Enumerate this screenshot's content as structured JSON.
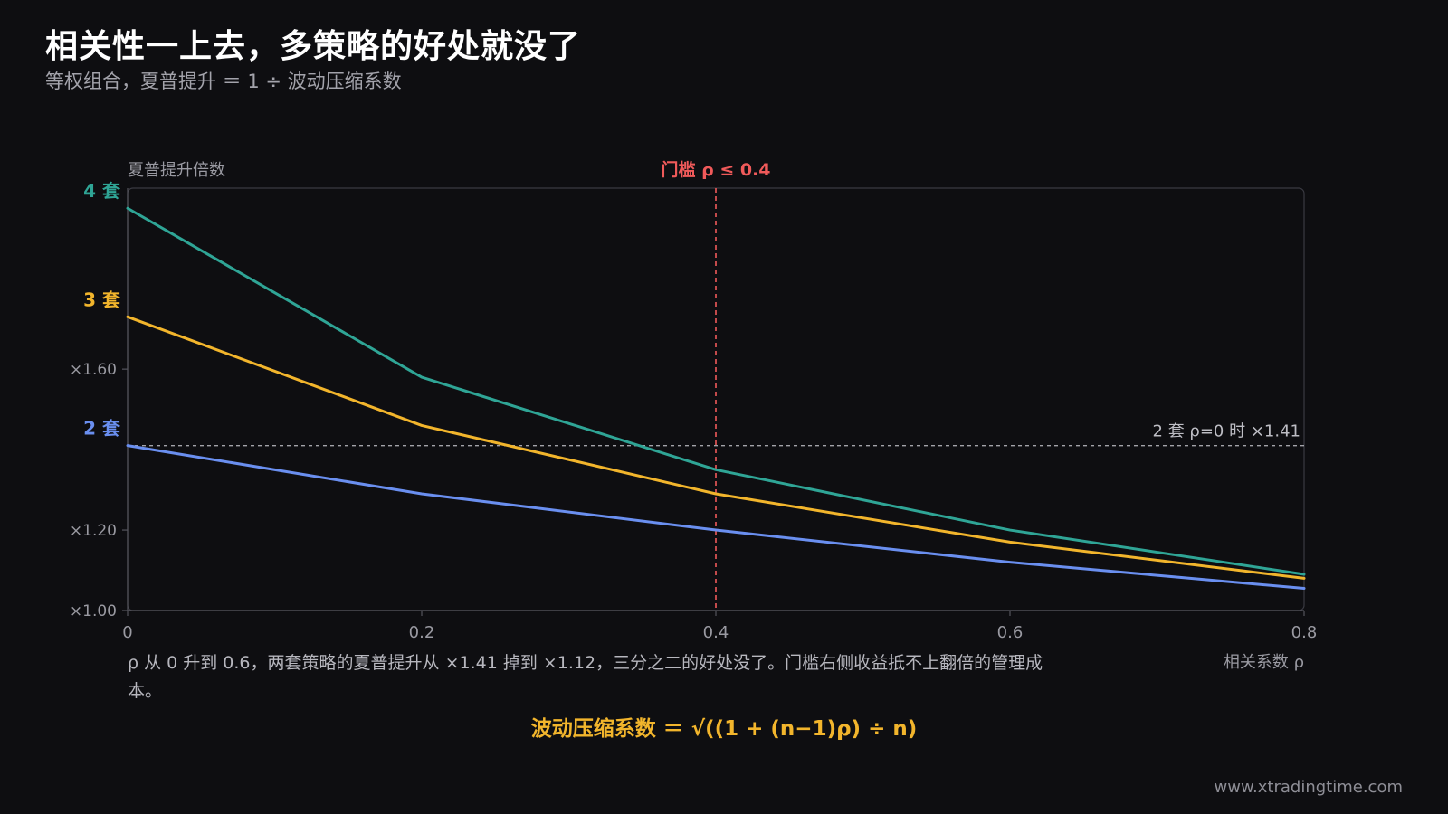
{
  "header": {
    "title": "相关性一上去，多策略的好处就没了",
    "subtitle": "等权组合，夏普提升 ＝ 1 ÷ 波动压缩系数"
  },
  "chart_data": {
    "type": "line",
    "ylabel": "夏普提升倍数",
    "xlabel": "相关系数 ρ",
    "x": [
      0,
      0.2,
      0.4,
      0.6,
      0.8
    ],
    "x_tick_labels": [
      "0",
      "0.2",
      "0.4",
      "0.6",
      "0.8"
    ],
    "xlim": [
      0,
      0.8
    ],
    "ylim": [
      1.0,
      2.05
    ],
    "y_ticks": [
      {
        "value": 1.0,
        "label": "×1.00"
      },
      {
        "value": 1.2,
        "label": "×1.20"
      },
      {
        "value": 1.6,
        "label": "×1.60"
      }
    ],
    "series": [
      {
        "name": "4 套",
        "color": "#2fa596",
        "values": [
          2.0,
          1.58,
          1.35,
          1.2,
          1.09
        ]
      },
      {
        "name": "3 套",
        "color": "#f2b52c",
        "values": [
          1.73,
          1.46,
          1.29,
          1.17,
          1.08
        ]
      },
      {
        "name": "2 套",
        "color": "#6a8ff0",
        "values": [
          1.41,
          1.29,
          1.2,
          1.12,
          1.055
        ]
      }
    ],
    "reference_lines": {
      "vertical": {
        "x": 0.4,
        "label": "门槛 ρ ≤ 0.4",
        "color": "#f05a5a"
      },
      "horizontal": {
        "y": 1.41,
        "label": "2 套 ρ=0 时 ×1.41",
        "color": "#bdbdc4"
      }
    },
    "grid": false,
    "legend": "inline-left"
  },
  "note": "ρ 从 0 升到 0.6，两套策略的夏普提升从 ×1.41 掉到 ×1.12，三分之二的好处没了。门槛右侧收益抵不上翻倍的管理成本。",
  "formula": "波动压缩系数 ＝ √((1 + (n−1)ρ) ÷ n)",
  "footer": "www.xtradingtime.com",
  "colors": {
    "background": "#0e0e11",
    "axis": "#4a4a52",
    "tick_text": "#9a9aa2"
  }
}
